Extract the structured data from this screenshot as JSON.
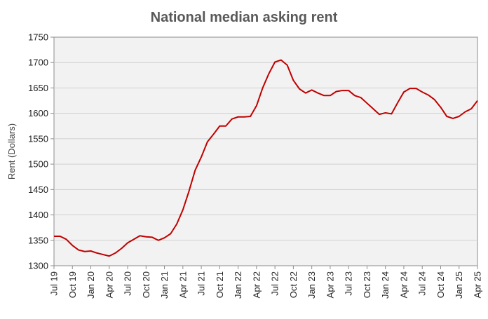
{
  "chart_data": {
    "type": "line",
    "title": "National median asking rent",
    "xlabel": "",
    "ylabel": "Rent (Dollars)",
    "ylim": [
      1300,
      1750
    ],
    "yticks": [
      1300,
      1350,
      1400,
      1450,
      1500,
      1550,
      1600,
      1650,
      1700,
      1750
    ],
    "grid": true,
    "line_color": "#c00000",
    "plot_background": "#f2f2f2",
    "x_tick_labels": [
      "Jul 19",
      "Oct 19",
      "Jan 20",
      "Apr 20",
      "Jul 20",
      "Oct 20",
      "Jan 21",
      "Apr 21",
      "Jul 21",
      "Oct 21",
      "Jan 22",
      "Apr 22",
      "Jul 22",
      "Oct 22",
      "Jan 23",
      "Apr 23",
      "Jul 23",
      "Oct 23",
      "Jan 24",
      "Apr 24",
      "Jul 24",
      "Oct 24",
      "Jan 25",
      "Apr 25"
    ],
    "x": [
      "Jul 19",
      "Aug 19",
      "Sep 19",
      "Oct 19",
      "Nov 19",
      "Dec 19",
      "Jan 20",
      "Feb 20",
      "Mar 20",
      "Apr 20",
      "May 20",
      "Jun 20",
      "Jul 20",
      "Aug 20",
      "Sep 20",
      "Oct 20",
      "Nov 20",
      "Dec 20",
      "Jan 21",
      "Feb 21",
      "Mar 21",
      "Apr 21",
      "May 21",
      "Jun 21",
      "Jul 21",
      "Aug 21",
      "Sep 21",
      "Oct 21",
      "Nov 21",
      "Dec 21",
      "Jan 22",
      "Feb 22",
      "Mar 22",
      "Apr 22",
      "May 22",
      "Jun 22",
      "Jul 22",
      "Aug 22",
      "Sep 22",
      "Oct 22",
      "Nov 22",
      "Dec 22",
      "Jan 23",
      "Feb 23",
      "Mar 23",
      "Apr 23",
      "May 23",
      "Jun 23",
      "Jul 23",
      "Aug 23",
      "Sep 23",
      "Oct 23",
      "Nov 23",
      "Dec 23",
      "Jan 24",
      "Feb 24",
      "Mar 24",
      "Apr 24",
      "May 24",
      "Jun 24",
      "Jul 24",
      "Aug 24",
      "Sep 24",
      "Oct 24",
      "Nov 24",
      "Dec 24",
      "Jan 25",
      "Feb 25",
      "Mar 25",
      "Apr 25"
    ],
    "series": [
      {
        "values": [
          1358,
          1358,
          1352,
          1340,
          1331,
          1328,
          1329,
          1325,
          1322,
          1319,
          1325,
          1334,
          1345,
          1352,
          1359,
          1357,
          1356,
          1350,
          1355,
          1363,
          1382,
          1410,
          1447,
          1488,
          1514,
          1544,
          1559,
          1575,
          1575,
          1589,
          1593,
          1593,
          1594,
          1615,
          1650,
          1678,
          1701,
          1705,
          1695,
          1665,
          1648,
          1640,
          1646,
          1640,
          1635,
          1635,
          1643,
          1645,
          1645,
          1635,
          1631,
          1620,
          1609,
          1598,
          1601,
          1599,
          1621,
          1642,
          1649,
          1649,
          1642,
          1636,
          1627,
          1612,
          1594,
          1590,
          1594,
          1603,
          1609,
          1625
        ]
      }
    ]
  }
}
